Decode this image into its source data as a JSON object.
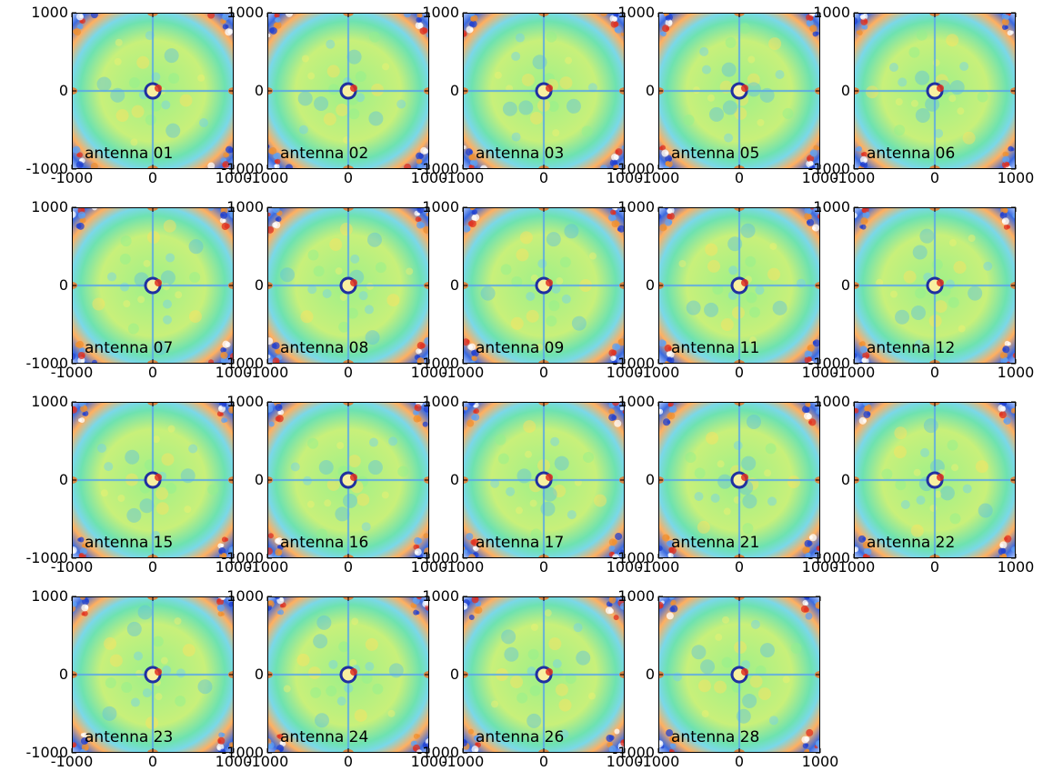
{
  "chart_data": {
    "type": "heatmap",
    "layout": {
      "rows": 4,
      "cols": 5
    },
    "colormap": "jet",
    "grid": false,
    "xlim": [
      -1000,
      1000
    ],
    "ylim": [
      -1000,
      1000
    ],
    "xticks": [
      "-1000",
      "0",
      "1000"
    ],
    "yticks": [
      "1000",
      "0",
      "-1000"
    ],
    "panels": [
      {
        "label": "antenna 01"
      },
      {
        "label": "antenna 02"
      },
      {
        "label": "antenna 03"
      },
      {
        "label": "antenna 05"
      },
      {
        "label": "antenna 06"
      },
      {
        "label": "antenna 07"
      },
      {
        "label": "antenna 08"
      },
      {
        "label": "antenna 09"
      },
      {
        "label": "antenna 11"
      },
      {
        "label": "antenna 12"
      },
      {
        "label": "antenna 15"
      },
      {
        "label": "antenna 16"
      },
      {
        "label": "antenna 17"
      },
      {
        "label": "antenna 21"
      },
      {
        "label": "antenna 22"
      },
      {
        "label": "antenna 23"
      },
      {
        "label": "antenna 24"
      },
      {
        "label": "antenna 26"
      },
      {
        "label": "antenna 28"
      }
    ]
  }
}
